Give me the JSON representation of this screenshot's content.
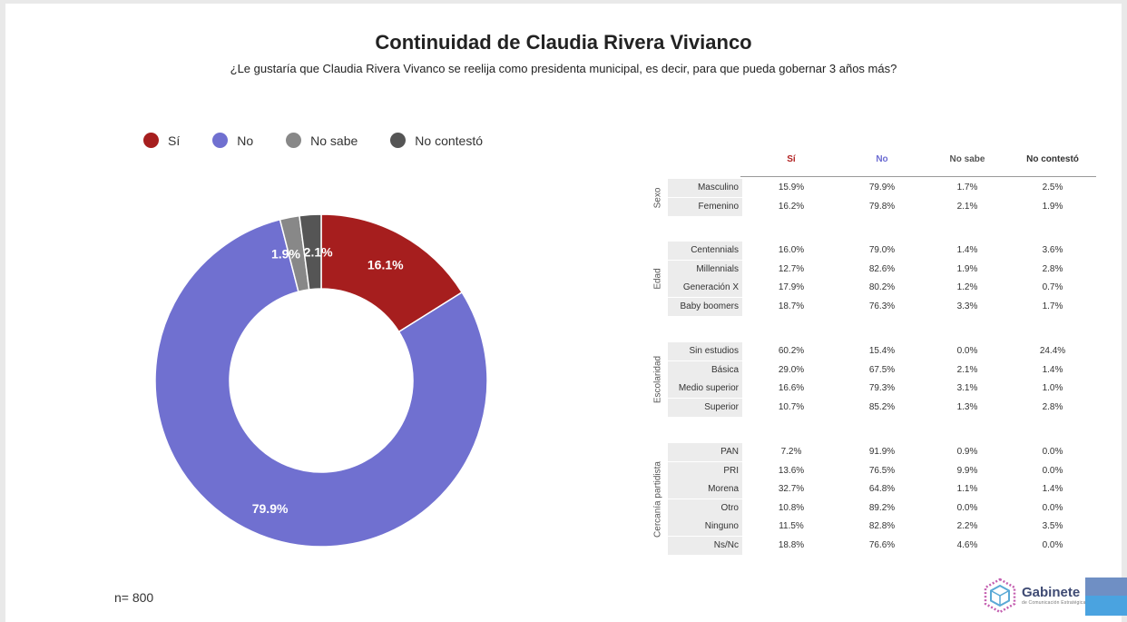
{
  "chart_data": {
    "type": "pie",
    "title": "Continuidad de Claudia Rivera Vivianco",
    "subtitle": "¿Le gustaría que Claudia Rivera Vivanco se reelija como presidenta municipal, es decir, para que pueda gobernar 3 años más?",
    "donut": true,
    "legend_position": "top-left",
    "slices": [
      {
        "name": "Sí",
        "value": 16.1,
        "label": "16.1%",
        "color": "#a61e1e"
      },
      {
        "name": "No",
        "value": 79.9,
        "label": "79.9%",
        "color": "#7070d0"
      },
      {
        "name": "No sabe",
        "value": 1.9,
        "label": "1.9%",
        "color": "#888888"
      },
      {
        "name": "No contestó",
        "value": 2.1,
        "label": "2.1%",
        "color": "#555555"
      }
    ],
    "sample_size": "n= 800"
  },
  "table": {
    "headers": [
      {
        "label": "Sí",
        "color": "#b22222"
      },
      {
        "label": "No",
        "color": "#6c6cd2"
      },
      {
        "label": "No sabe",
        "color": "#555555"
      },
      {
        "label": "No contestó",
        "color": "#333333"
      }
    ],
    "groups": [
      {
        "name": "Sexo",
        "rows": [
          {
            "label": "Masculino",
            "values": [
              "15.9%",
              "79.9%",
              "1.7%",
              "2.5%"
            ]
          },
          {
            "label": "Femenino",
            "values": [
              "16.2%",
              "79.8%",
              "2.1%",
              "1.9%"
            ]
          }
        ]
      },
      {
        "name": "Edad",
        "rows": [
          {
            "label": "Centennials",
            "values": [
              "16.0%",
              "79.0%",
              "1.4%",
              "3.6%"
            ]
          },
          {
            "label": "Millennials",
            "values": [
              "12.7%",
              "82.6%",
              "1.9%",
              "2.8%"
            ]
          },
          {
            "label": "Generación X",
            "values": [
              "17.9%",
              "80.2%",
              "1.2%",
              "0.7%"
            ]
          },
          {
            "label": "Baby boomers",
            "values": [
              "18.7%",
              "76.3%",
              "3.3%",
              "1.7%"
            ]
          }
        ]
      },
      {
        "name": "Escolaridad",
        "rows": [
          {
            "label": "Sin estudios",
            "values": [
              "60.2%",
              "15.4%",
              "0.0%",
              "24.4%"
            ]
          },
          {
            "label": "Básica",
            "values": [
              "29.0%",
              "67.5%",
              "2.1%",
              "1.4%"
            ]
          },
          {
            "label": "Medio superior",
            "values": [
              "16.6%",
              "79.3%",
              "3.1%",
              "1.0%"
            ]
          },
          {
            "label": "Superior",
            "values": [
              "10.7%",
              "85.2%",
              "1.3%",
              "2.8%"
            ]
          }
        ]
      },
      {
        "name": "Cercanía partidista",
        "rows": [
          {
            "label": "PAN",
            "values": [
              "7.2%",
              "91.9%",
              "0.9%",
              "0.0%"
            ]
          },
          {
            "label": "PRI",
            "values": [
              "13.6%",
              "76.5%",
              "9.9%",
              "0.0%"
            ]
          },
          {
            "label": "Morena",
            "values": [
              "32.7%",
              "64.8%",
              "1.1%",
              "1.4%"
            ]
          },
          {
            "label": "Otro",
            "values": [
              "10.8%",
              "89.2%",
              "0.0%",
              "0.0%"
            ]
          },
          {
            "label": "Ninguno",
            "values": [
              "11.5%",
              "82.8%",
              "2.2%",
              "3.5%"
            ]
          },
          {
            "label": "Ns/Nc",
            "values": [
              "18.8%",
              "76.6%",
              "4.6%",
              "0.0%"
            ]
          }
        ]
      }
    ]
  },
  "logo": {
    "name": "Gabinete",
    "subtitle": "de Comunicación Estratégica",
    "icon": "hexagon-cube-logo-icon"
  }
}
